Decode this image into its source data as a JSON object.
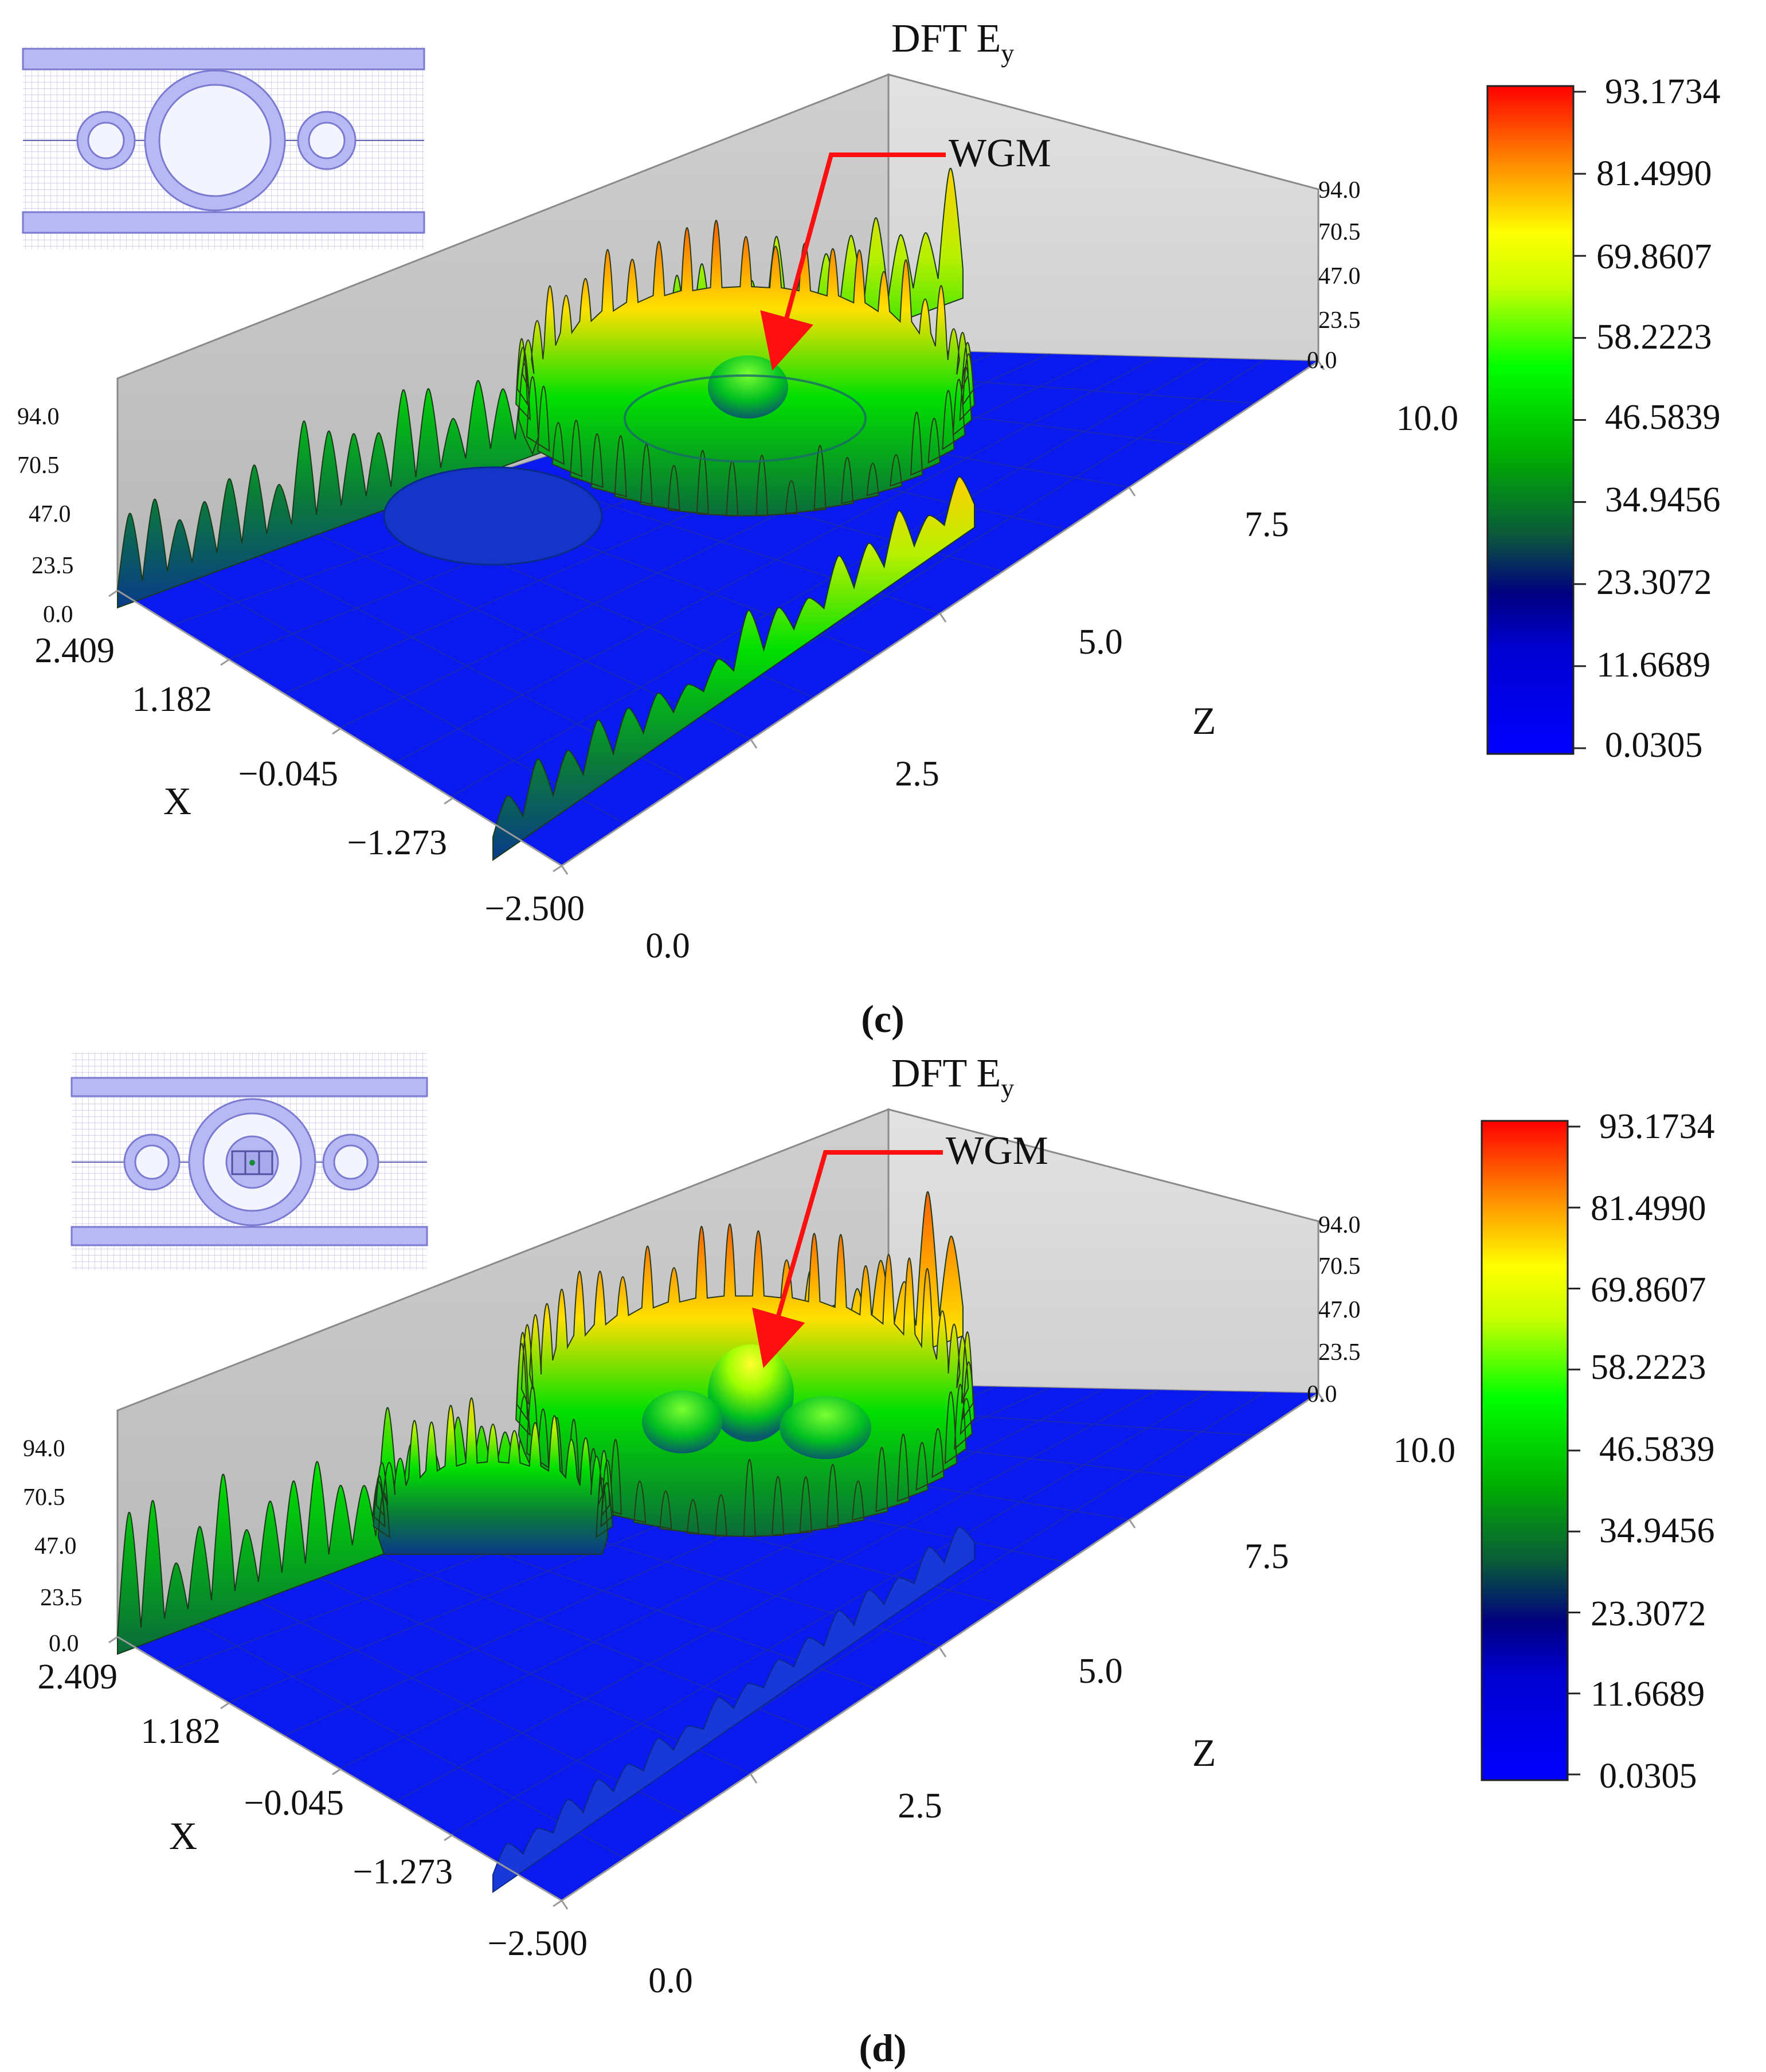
{
  "panels": [
    {
      "id": "c",
      "caption": "(c)",
      "title_main": "DFT E",
      "title_sub": "y",
      "annotation": "WGM",
      "x_axis_label": "X",
      "x_ticks": [
        "2.409",
        "1.182",
        "−0.045",
        "−1.273",
        "−2.500"
      ],
      "z_axis_label": "Z",
      "z_ticks": [
        "0.0",
        "2.5",
        "5.0",
        "7.5",
        "10.0"
      ],
      "height_ticks_left": [
        "94.0",
        "70.5",
        "47.0",
        "23.5",
        "0.0"
      ],
      "height_ticks_right": [
        "94.0",
        "70.5",
        "47.0",
        "23.5",
        "0.0"
      ],
      "colorbar_ticks": [
        "93.1734",
        "81.4990",
        "69.8607",
        "58.2223",
        "46.5839",
        "34.9456",
        "23.3072",
        "11.6689",
        "0.0305"
      ],
      "inset": {
        "has_center_defect": false
      }
    },
    {
      "id": "d",
      "caption": "(d)",
      "title_main": "DFT E",
      "title_sub": "y",
      "annotation": "WGM",
      "x_axis_label": "X",
      "x_ticks": [
        "2.409",
        "1.182",
        "−0.045",
        "−1.273",
        "−2.500"
      ],
      "z_axis_label": "Z",
      "z_ticks": [
        "0.0",
        "2.5",
        "5.0",
        "7.5",
        "10.0"
      ],
      "height_ticks_left": [
        "94.0",
        "70.5",
        "47.0",
        "23.5",
        "0.0"
      ],
      "height_ticks_right": [
        "94.0",
        "70.5",
        "47.0",
        "23.5",
        "0.0"
      ],
      "colorbar_ticks": [
        "93.1734",
        "81.4990",
        "69.8607",
        "58.2223",
        "46.5839",
        "34.9456",
        "23.3072",
        "11.6689",
        "0.0305"
      ],
      "inset": {
        "has_center_defect": true
      }
    }
  ],
  "chart_data": [
    {
      "type": "surface",
      "title": "DFT E_y",
      "xlabel": "X",
      "zlabel": "Z",
      "x_range": [
        -2.5,
        2.409
      ],
      "z_range": [
        0.0,
        10.0
      ],
      "value_range": [
        0.0,
        94.0
      ],
      "colorbar_range": [
        0.0305,
        93.1734
      ],
      "colormap": [
        "#0000ff",
        "#00008c",
        "#0b6a2a",
        "#00ff00",
        "#ffff00",
        "#ff8000",
        "#ff0000"
      ],
      "annotation": "WGM"
    },
    {
      "type": "surface",
      "title": "DFT E_y",
      "xlabel": "X",
      "zlabel": "Z",
      "x_range": [
        -2.5,
        2.409
      ],
      "z_range": [
        0.0,
        10.0
      ],
      "value_range": [
        0.0,
        94.0
      ],
      "colorbar_range": [
        0.0305,
        93.1734
      ],
      "colormap": [
        "#0000ff",
        "#00008c",
        "#0b6a2a",
        "#00ff00",
        "#ffff00",
        "#ff8000",
        "#ff0000"
      ],
      "annotation": "WGM"
    }
  ]
}
